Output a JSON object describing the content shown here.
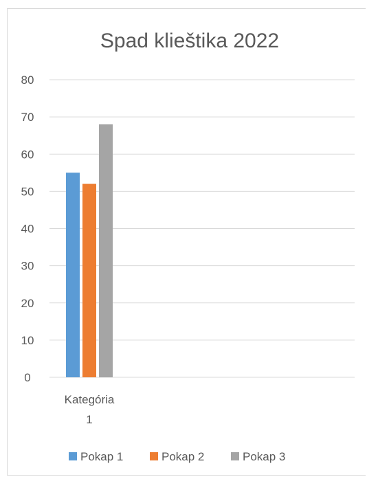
{
  "chart_data": {
    "type": "bar",
    "title": "Spad klieštika 2022",
    "categories": [
      "Kategória 1"
    ],
    "category_label_lines": [
      [
        "Kategória",
        "1"
      ]
    ],
    "series": [
      {
        "name": "Pokap 1",
        "values": [
          55
        ],
        "color": "#5b9bd5"
      },
      {
        "name": "Pokap 2",
        "values": [
          52
        ],
        "color": "#ed7d31"
      },
      {
        "name": "Pokap 3",
        "values": [
          68
        ],
        "color": "#a5a5a5"
      }
    ],
    "ylim": [
      0,
      80
    ],
    "yticks": [
      0,
      10,
      20,
      30,
      40,
      50,
      60,
      70,
      80
    ],
    "grid": true,
    "legend_position": "bottom",
    "xlabel": "",
    "ylabel": ""
  },
  "colors": {
    "grid": "#d9d9d9",
    "text": "#595959",
    "frame": "#d9d9d9"
  }
}
